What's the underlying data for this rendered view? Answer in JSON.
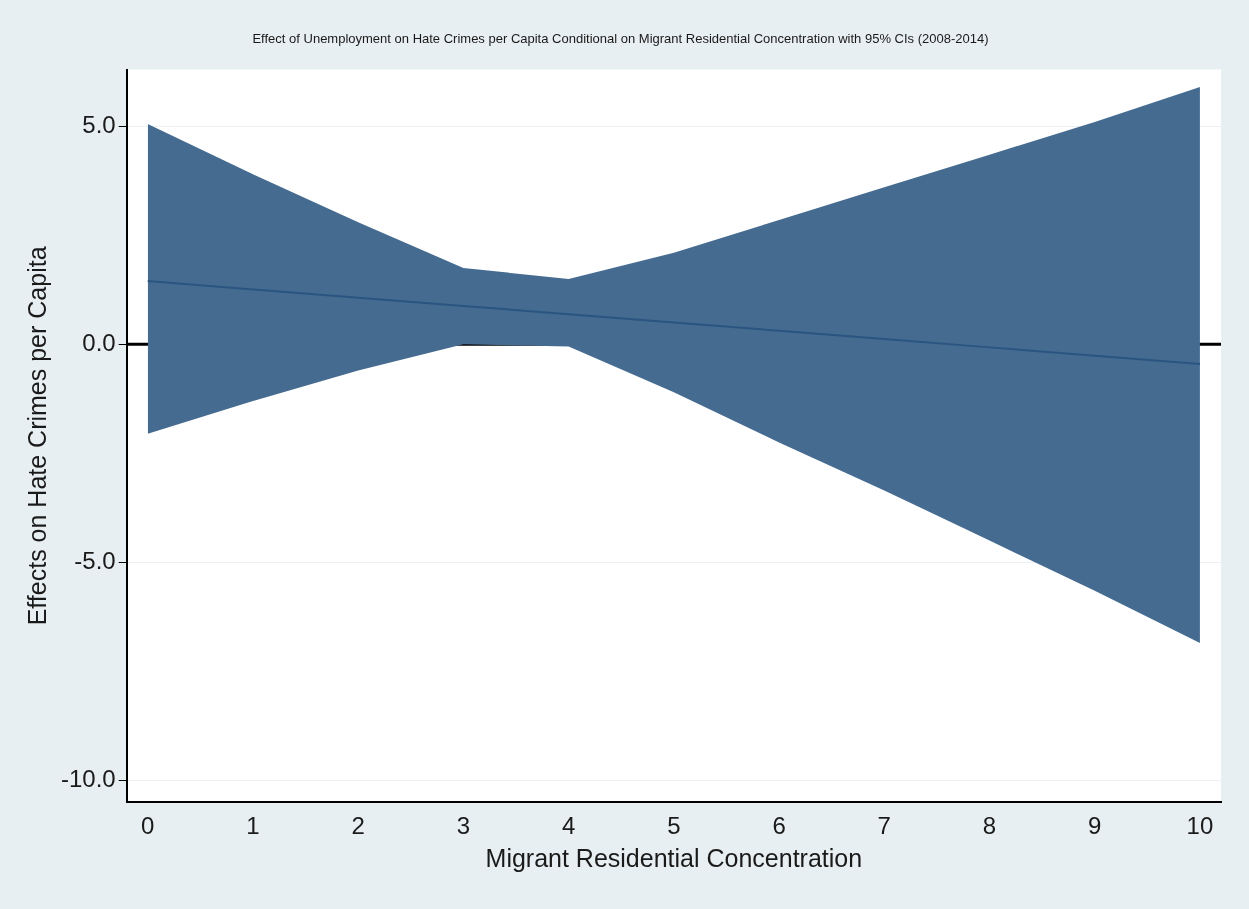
{
  "chart_data": {
    "type": "line",
    "title": "Effect of Unemployment on Hate Crimes per Capita Conditional on Migrant Residential Concentration with 95% CIs (2008-2014)",
    "xlabel": "Migrant Residential Concentration",
    "ylabel": "Effects on Hate Crimes per Capita",
    "x": [
      0,
      1,
      2,
      3,
      4,
      5,
      6,
      7,
      8,
      9,
      10
    ],
    "series": [
      {
        "color": "#2a5580",
        "values": [
          1.45,
          1.26,
          1.07,
          0.88,
          0.69,
          0.5,
          0.31,
          0.12,
          -0.07,
          -0.26,
          -0.45
        ],
        "lower": [
          -2.05,
          -1.3,
          -0.6,
          0.0,
          -0.05,
          -1.1,
          -2.25,
          -3.35,
          -4.5,
          -5.65,
          -6.85
        ],
        "upper": [
          5.05,
          3.9,
          2.8,
          1.75,
          1.5,
          2.1,
          2.85,
          3.6,
          4.35,
          5.1,
          5.9
        ]
      }
    ],
    "xlim": [
      -0.2,
      10.2
    ],
    "ylim": [
      -10.5,
      6.3
    ],
    "xticks": [
      0,
      1,
      2,
      3,
      4,
      5,
      6,
      7,
      8,
      9,
      10
    ],
    "yticks": [
      {
        "value": -10,
        "label": "-10.0"
      },
      {
        "value": -5,
        "label": "-5.0"
      },
      {
        "value": 0,
        "label": "0.0"
      },
      {
        "value": 5,
        "label": "5.0"
      }
    ],
    "ref_lines": [
      {
        "axis": "y",
        "value": 0,
        "color": "#000000"
      }
    ],
    "grid": "y",
    "legend": false,
    "marker": "none",
    "line_style": "solid"
  }
}
